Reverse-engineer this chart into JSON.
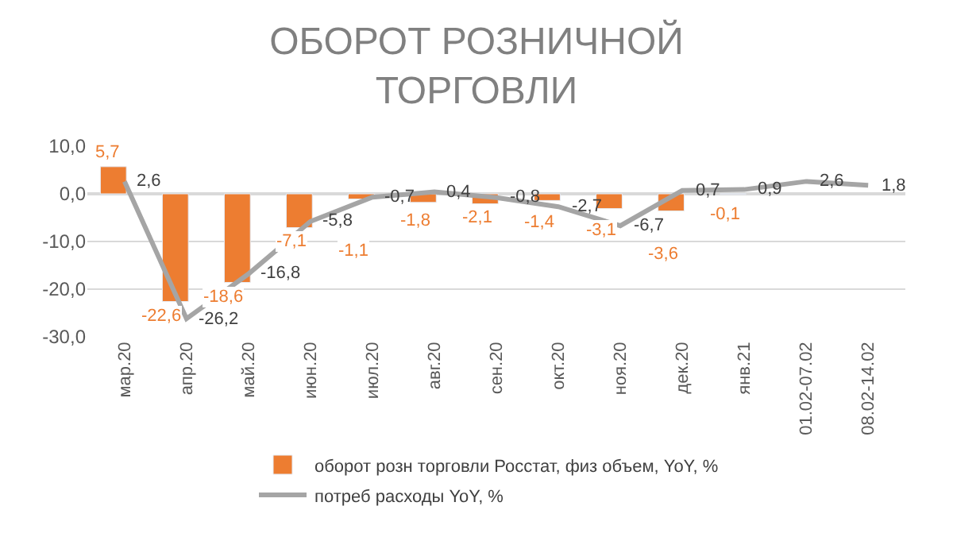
{
  "chart_data": {
    "type": "bar",
    "title": "ОБОРОТ РОЗНИЧНОЙ\nТОРГОВЛИ",
    "categories": [
      "мар.20",
      "апр.20",
      "май.20",
      "июн.20",
      "июл.20",
      "авг.20",
      "сен.20",
      "окт.20",
      "ноя.20",
      "дек.20",
      "янв.21",
      "01.02-07.02",
      "08.02-14.02"
    ],
    "series": [
      {
        "name": "оборот розн торговли Росстат, физ объем, YoY, %",
        "color": "#ed7d31",
        "values": [
          5.7,
          -22.6,
          -18.6,
          -7.1,
          -1.1,
          -1.8,
          -2.1,
          -1.4,
          -3.1,
          -3.6,
          -0.1,
          null,
          null
        ],
        "value_labels": [
          "5,7",
          "-22,6",
          "-18,6",
          "-7,1",
          "-1,1",
          "-1,8",
          "-2,1",
          "-1,4",
          "-3,1",
          "-3,6",
          "-0,1",
          null,
          null
        ]
      },
      {
        "name": "потреб расходы YoY, %",
        "type": "line",
        "color": "#a5a5a5",
        "values": [
          2.6,
          -26.2,
          -16.8,
          -5.8,
          -0.7,
          0.4,
          -0.8,
          -2.7,
          -6.7,
          0.7,
          0.9,
          2.6,
          1.8
        ],
        "value_labels": [
          "2,6",
          "-26,2",
          "-16,8",
          "-5,8",
          "-0,7",
          "0,4",
          "-0,8",
          "-2,7",
          "-6,7",
          "0,7",
          "0,9",
          "2,6",
          "1,8"
        ]
      }
    ],
    "ylim": [
      -30,
      10
    ],
    "yticks": [
      {
        "value": -30,
        "label": "-30,0"
      },
      {
        "value": -20,
        "label": "-20,0"
      },
      {
        "value": -10,
        "label": "-10,0"
      },
      {
        "value": 0,
        "label": "0,0"
      },
      {
        "value": 10,
        "label": "10,0"
      }
    ],
    "grid": "y",
    "legend": "bottom",
    "marker": "none"
  }
}
